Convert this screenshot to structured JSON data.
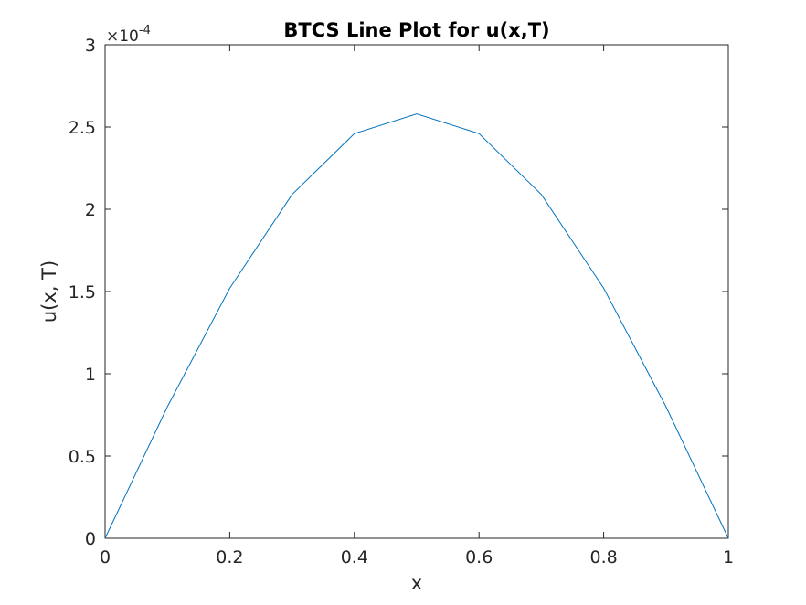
{
  "chart_data": {
    "type": "line",
    "title": "BTCS Line Plot for u(x,T)",
    "xlabel": "x",
    "ylabel": "u(x, T)",
    "xlim": [
      0,
      1
    ],
    "ylim": [
      0,
      3
    ],
    "xticks": [
      "0",
      "0.2",
      "0.4",
      "0.6",
      "0.8",
      "1"
    ],
    "xtick_values": [
      0,
      0.2,
      0.4,
      0.6,
      0.8,
      1
    ],
    "yticks": [
      "0",
      "0.5",
      "1",
      "1.5",
      "2",
      "2.5",
      "3"
    ],
    "ytick_values": [
      0,
      0.5,
      1,
      1.5,
      2,
      2.5,
      3
    ],
    "y_exponent_base": "×10",
    "y_exponent_power": "-4",
    "grid": false,
    "line_color": "#0072bd",
    "series": [
      {
        "x": [
          0,
          0.1,
          0.2,
          0.3,
          0.4,
          0.5,
          0.6,
          0.7,
          0.8,
          0.9,
          1.0
        ],
        "y": [
          0,
          0.8,
          1.52,
          2.09,
          2.46,
          2.58,
          2.46,
          2.09,
          1.52,
          0.8,
          0
        ]
      }
    ]
  }
}
